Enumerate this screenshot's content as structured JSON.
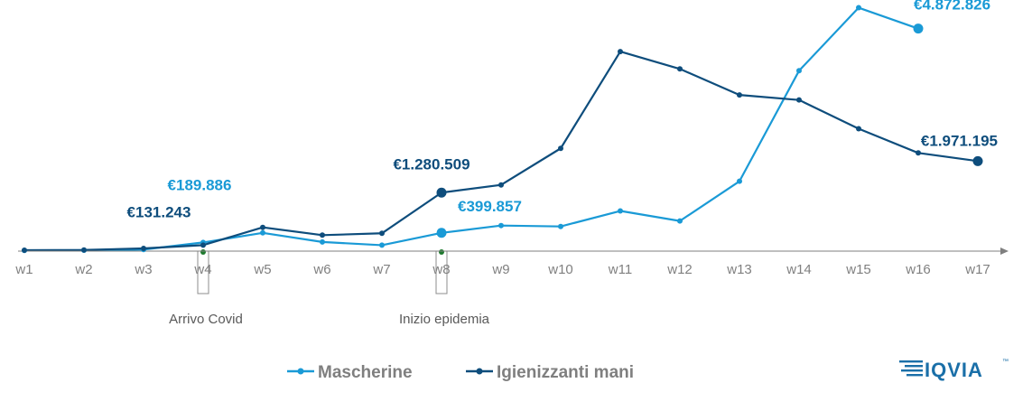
{
  "chart_data": {
    "type": "line",
    "categories": [
      "w1",
      "w2",
      "w3",
      "w4",
      "w5",
      "w6",
      "w7",
      "w8",
      "w9",
      "w10",
      "w11",
      "w12",
      "w13",
      "w14",
      "w15",
      "w16",
      "w17"
    ],
    "ylim": [
      0,
      5400000
    ],
    "grid": false,
    "legend_position": "bottom-center",
    "series": [
      {
        "name": "Mascherine",
        "color": "#1a9ad6",
        "values": [
          15000,
          20000,
          35000,
          189886,
          400000,
          200000,
          130000,
          399857,
          560000,
          540000,
          880000,
          660000,
          1530000,
          3950000,
          5330000,
          4872826,
          null
        ]
      },
      {
        "name": "Igienizzanti mani",
        "color": "#0e4d7c",
        "values": [
          20000,
          25000,
          60000,
          131243,
          520000,
          350000,
          390000,
          1280509,
          1450000,
          2250000,
          4370000,
          3990000,
          3420000,
          3310000,
          2680000,
          2150000,
          1971195
        ]
      }
    ],
    "data_labels": [
      {
        "series": "Mascherine",
        "category": "w4",
        "text": "€189.886"
      },
      {
        "series": "Igienizzanti mani",
        "category": "w4",
        "text": "€131.243"
      },
      {
        "series": "Igienizzanti mani",
        "category": "w8",
        "text": "€1.280.509"
      },
      {
        "series": "Mascherine",
        "category": "w8",
        "text": "€399.857"
      },
      {
        "series": "Mascherine",
        "category": "w16",
        "text": "€4.872.826"
      },
      {
        "series": "Igienizzanti mani",
        "category": "w17",
        "text": "€1.971.195"
      }
    ],
    "annotations": [
      {
        "category": "w4",
        "text": "Arrivo Covid",
        "marker_color": "#1e7a2e"
      },
      {
        "category": "w8",
        "text": "Inizio epidemia",
        "marker_color": "#1e7a2e"
      }
    ]
  },
  "legend": {
    "items": [
      {
        "label": "Mascherine",
        "color": "#1a9ad6"
      },
      {
        "label": "Igienizzanti mani",
        "color": "#0e4d7c"
      }
    ]
  },
  "logo": {
    "text": "IQVIA",
    "trademark": "™",
    "color": "#1a6fa8"
  },
  "colors": {
    "axis": "#7f7f7f",
    "tick_text": "#808080",
    "annotation_text": "#595959"
  }
}
